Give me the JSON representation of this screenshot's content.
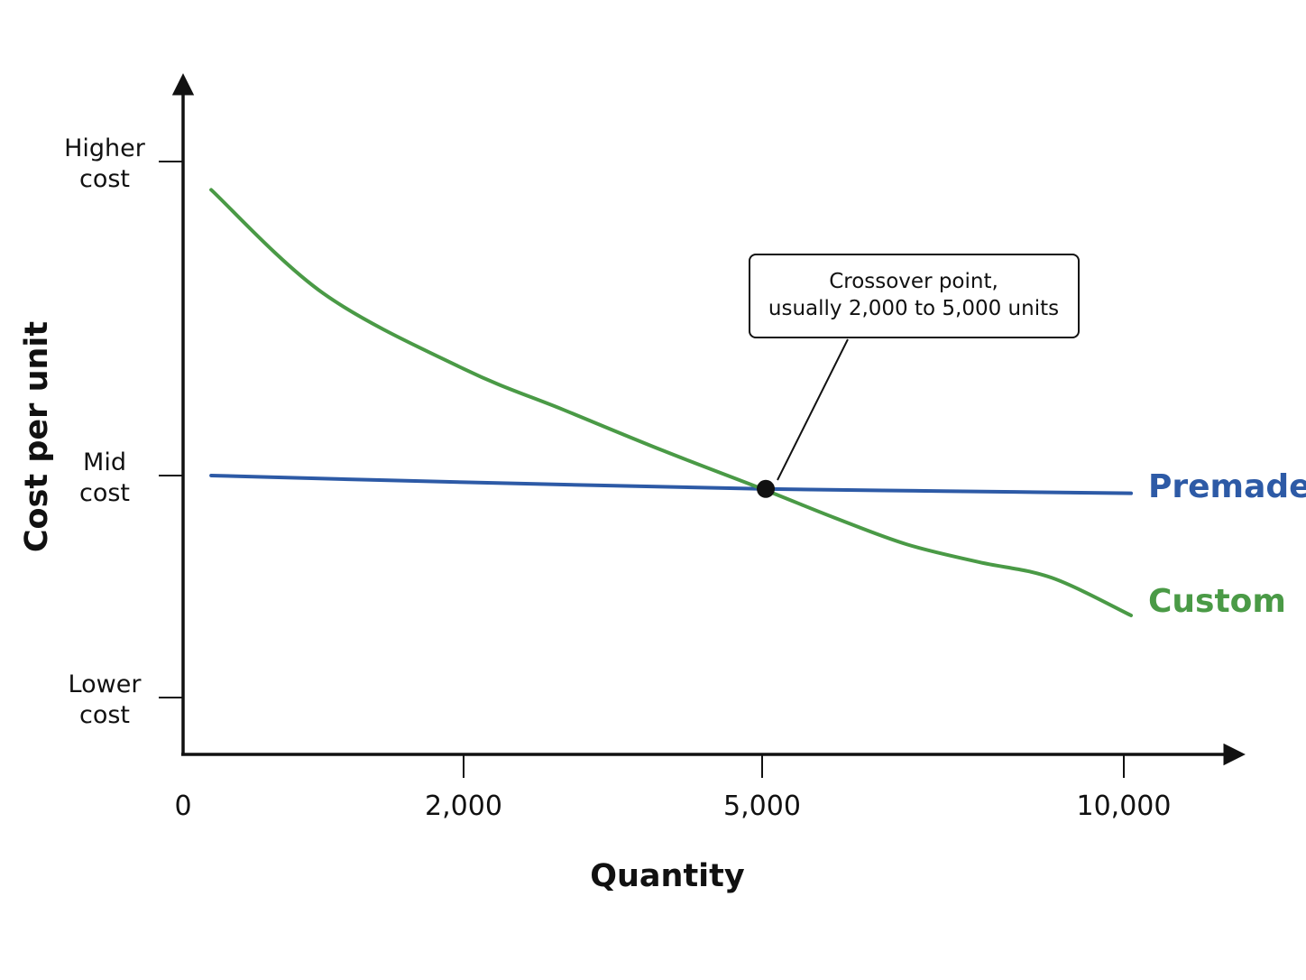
{
  "chart_data": {
    "type": "line",
    "xlabel": "Quantity",
    "ylabel": "Cost per unit",
    "x_ticks": [
      {
        "value": 0,
        "label": "0"
      },
      {
        "value": 2000,
        "label": "2,000"
      },
      {
        "value": 5000,
        "label": "5,000"
      },
      {
        "value": 10000,
        "label": "10,000"
      }
    ],
    "y_ticks": [
      {
        "value": 3,
        "lines": [
          "Higher",
          "cost"
        ]
      },
      {
        "value": 2,
        "lines": [
          "Mid",
          "cost"
        ]
      },
      {
        "value": 1,
        "lines": [
          "Lower",
          "cost"
        ]
      }
    ],
    "series": [
      {
        "name": "Premade",
        "color": "#2d5aa6",
        "points": [
          [
            200,
            2.0
          ],
          [
            2000,
            1.97
          ],
          [
            5000,
            1.94
          ],
          [
            7500,
            1.93
          ],
          [
            10100,
            1.92
          ]
        ]
      },
      {
        "name": "Custom",
        "color": "#4a9a46",
        "points": [
          [
            200,
            2.91
          ],
          [
            1000,
            2.58
          ],
          [
            2000,
            2.34
          ],
          [
            3000,
            2.21
          ],
          [
            4000,
            2.08
          ],
          [
            5000,
            1.94
          ],
          [
            6000,
            1.81
          ],
          [
            7000,
            1.69
          ],
          [
            8000,
            1.61
          ],
          [
            9000,
            1.54
          ],
          [
            10100,
            1.37
          ]
        ]
      }
    ],
    "annotation": {
      "lines": [
        "Crossover point,",
        "usually 2,000 to 5,000 units"
      ],
      "point": [
        5050,
        1.94
      ]
    }
  }
}
